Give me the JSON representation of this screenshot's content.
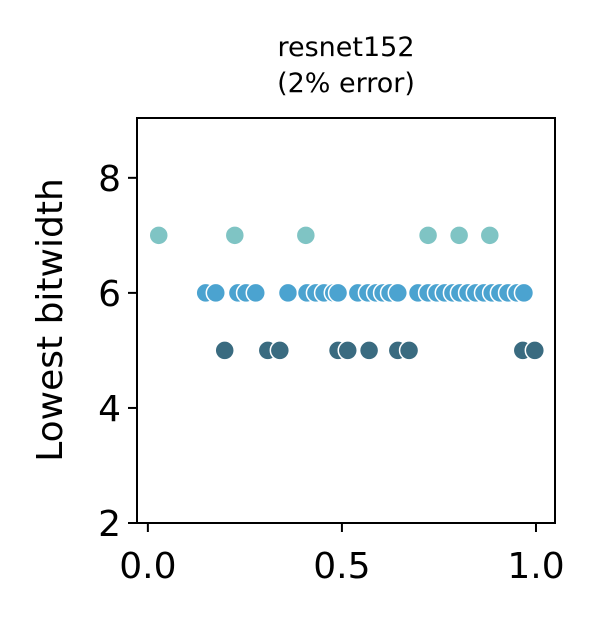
{
  "chart_data": {
    "type": "scatter",
    "title": [
      "resnet152",
      "(2% error)"
    ],
    "y_label": "Lowest bitwidth",
    "xlim": [
      -0.028,
      1.049
    ],
    "ylim": [
      2,
      9.04
    ],
    "xticks": [
      {
        "value": 0,
        "label": "0.0"
      },
      {
        "value": 0.5,
        "label": "0.5"
      },
      {
        "value": 1,
        "label": "1.0"
      }
    ],
    "yticks": [
      2,
      4,
      6,
      8
    ],
    "series": [
      {
        "color": "#7fc4c4",
        "x": [
          0.028,
          0.224,
          0.407,
          0.722,
          0.802,
          0.881
        ],
        "values": [
          7,
          7,
          7,
          7,
          7,
          7
        ]
      },
      {
        "color": "#4ba3d0",
        "x": [
          0.149,
          0.175,
          0.232,
          0.253,
          0.278,
          0.361,
          0.41,
          0.433,
          0.454,
          0.479,
          0.49,
          0.541,
          0.567,
          0.588,
          0.606,
          0.624,
          0.644,
          0.696,
          0.722,
          0.745,
          0.765,
          0.786,
          0.804,
          0.825,
          0.845,
          0.866,
          0.887,
          0.907,
          0.928,
          0.951,
          0.969
        ],
        "values": [
          6,
          6,
          6,
          6,
          6,
          6,
          6,
          6,
          6,
          6,
          6,
          6,
          6,
          6,
          6,
          6,
          6,
          6,
          6,
          6,
          6,
          6,
          6,
          6,
          6,
          6,
          6,
          6,
          6,
          6,
          6
        ]
      },
      {
        "color": "#3a6b80",
        "x": [
          0.198,
          0.309,
          0.34,
          0.49,
          0.515,
          0.57,
          0.644,
          0.673,
          0.966,
          0.997
        ],
        "values": [
          5,
          5,
          5,
          5,
          5,
          5,
          5,
          5,
          5,
          5
        ]
      }
    ]
  }
}
